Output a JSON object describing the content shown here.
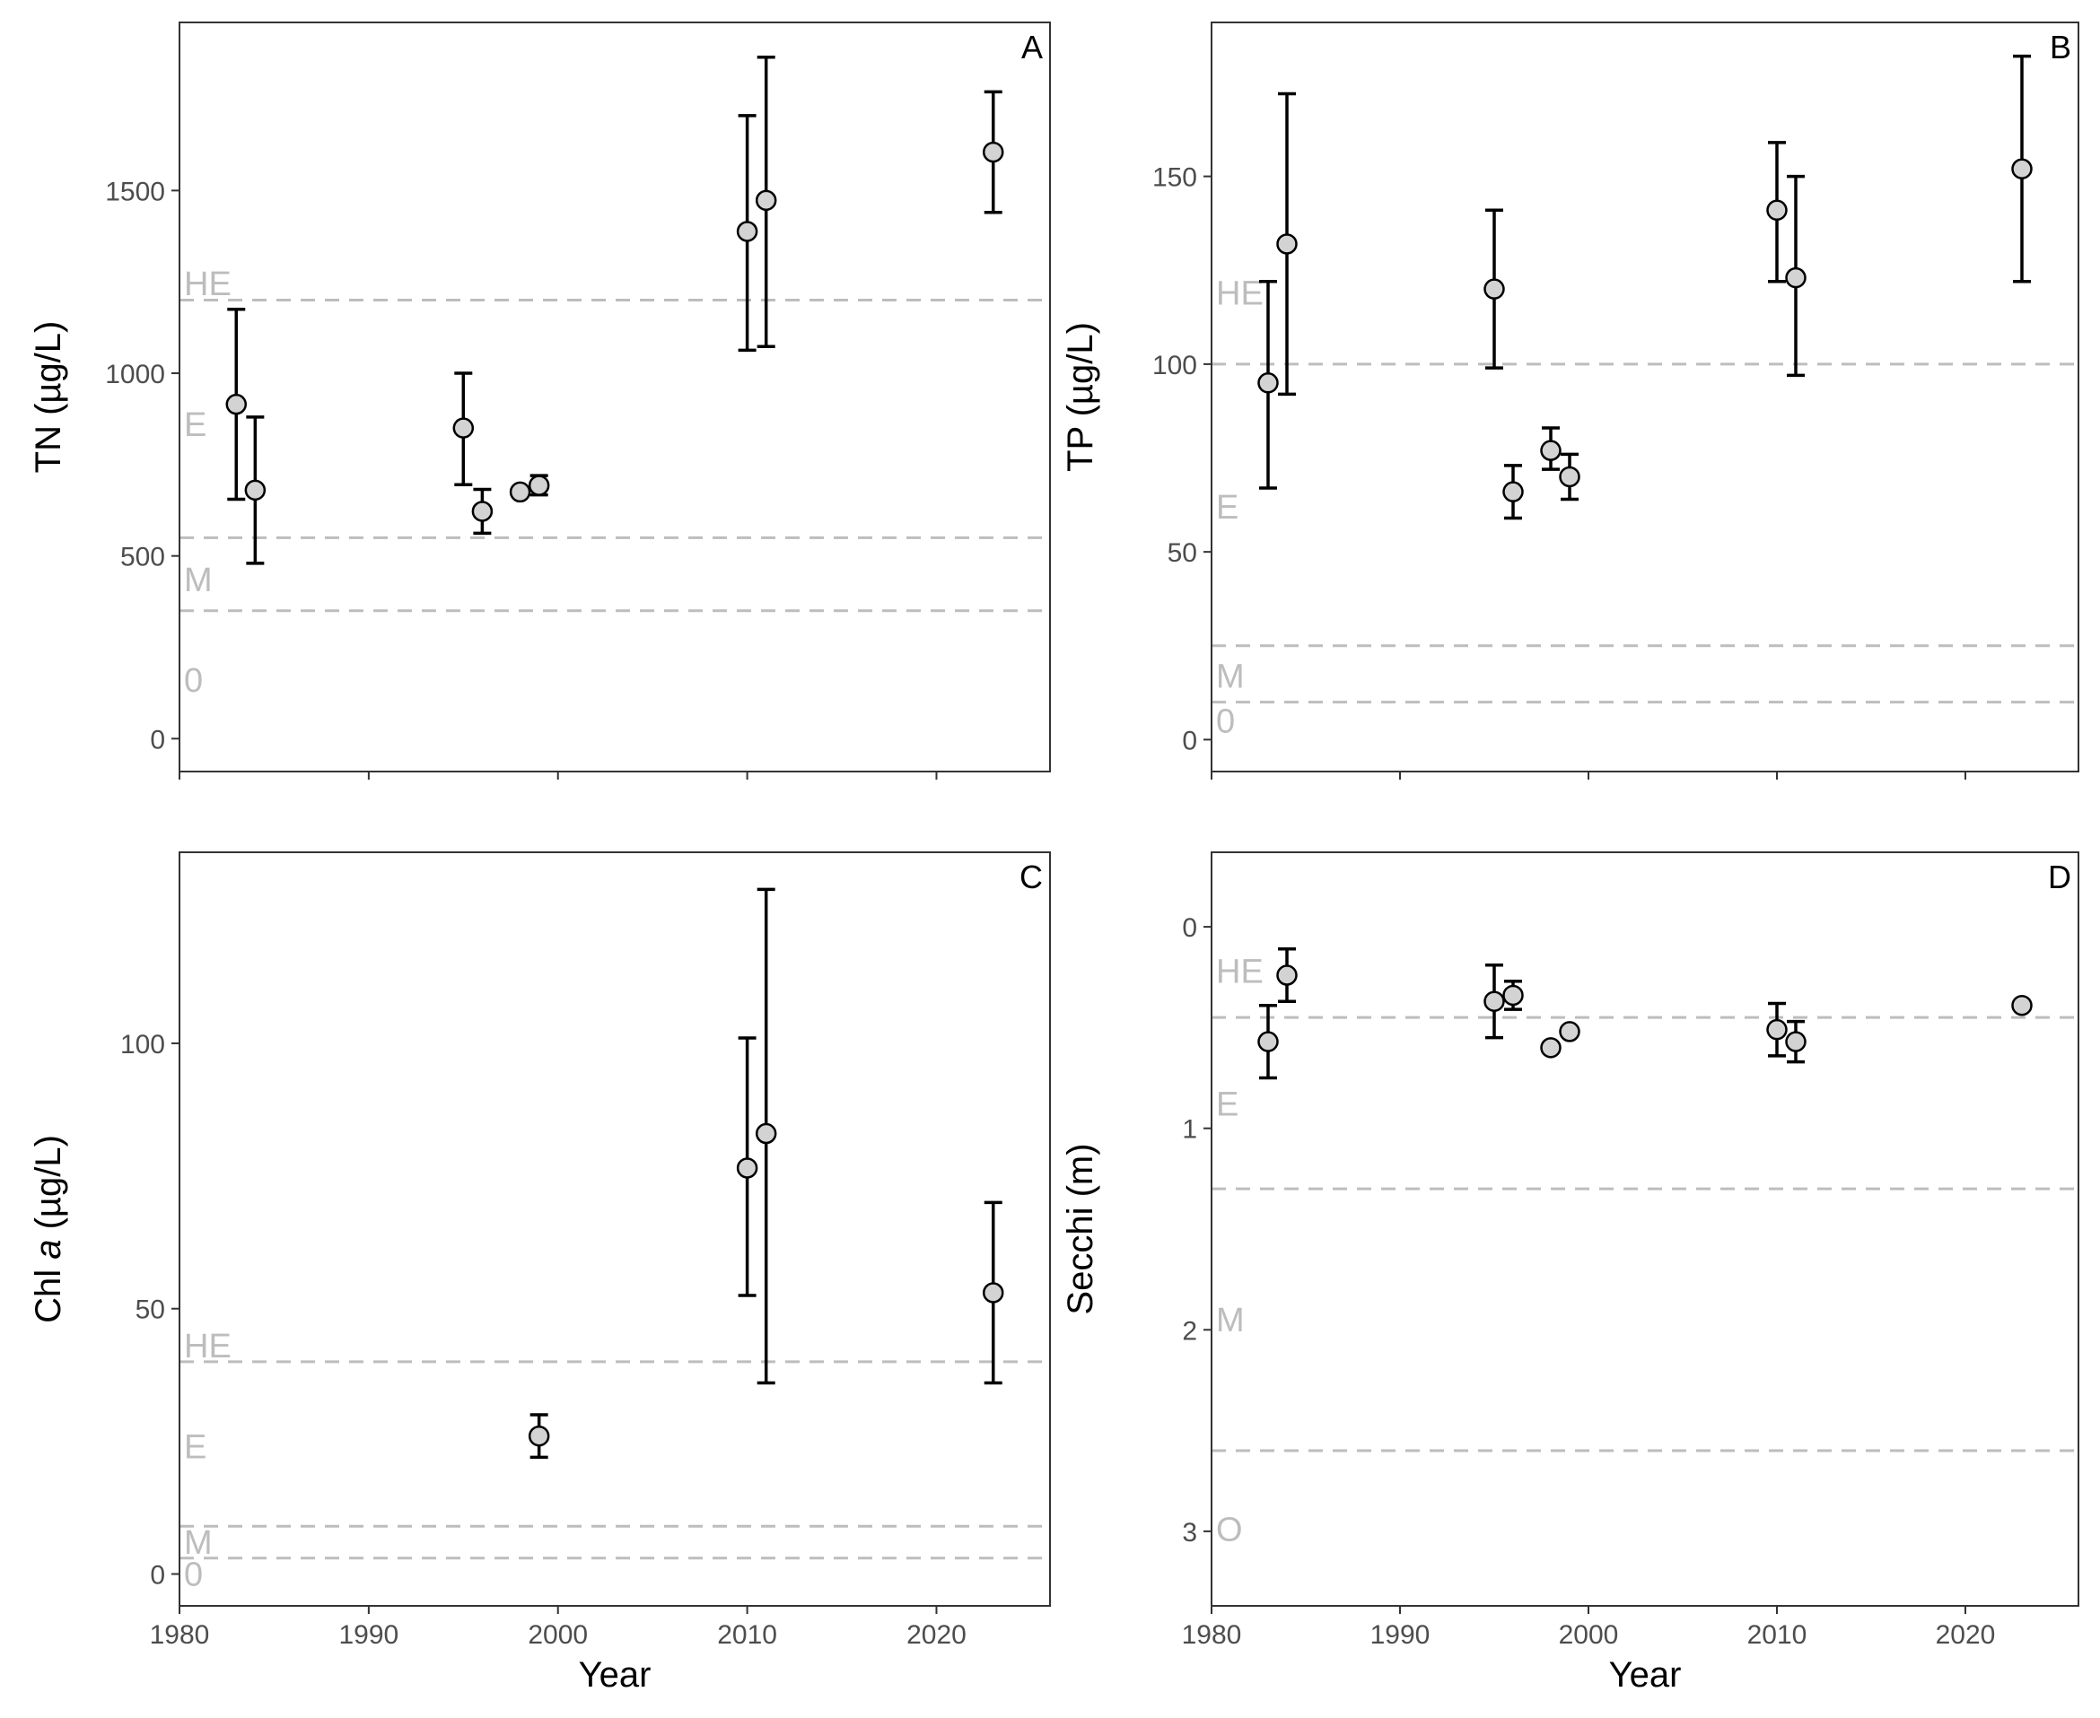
{
  "colors": {
    "point_fill": "#d3d3d3",
    "point_stroke": "#000000",
    "errorbar": "#000000",
    "reference_line": "#bdbdbd",
    "reference_label": "#bdbdbd",
    "tick_label": "#4d4d4d"
  },
  "chart_data": [
    {
      "panel": "A",
      "type": "scatter",
      "xlabel": "Year",
      "ylabel_parts": [
        "TN (µg/L)"
      ],
      "xlim": [
        1980,
        2026
      ],
      "ylim": [
        -90,
        1960
      ],
      "xticks": [
        1980,
        1990,
        2000,
        2010,
        2020
      ],
      "yticks": [
        0,
        500,
        1000,
        1500
      ],
      "show_x_tick_labels": false,
      "reversed_y": false,
      "reference_lines": [
        1200,
        550,
        350
      ],
      "reference_labels": [
        {
          "text": "HE",
          "y": 1245
        },
        {
          "text": "E",
          "y": 860
        },
        {
          "text": "M",
          "y": 435
        },
        {
          "text": "0",
          "y": 160
        }
      ],
      "points": [
        {
          "x": 1983,
          "y": 915,
          "lo": 655,
          "hi": 1175
        },
        {
          "x": 1984,
          "y": 680,
          "lo": 480,
          "hi": 880
        },
        {
          "x": 1995,
          "y": 850,
          "lo": 695,
          "hi": 1000
        },
        {
          "x": 1996,
          "y": 622,
          "lo": 562,
          "hi": 682
        },
        {
          "x": 1998,
          "y": 675
        },
        {
          "x": 1999,
          "y": 693,
          "lo": 667,
          "hi": 720
        },
        {
          "x": 2010,
          "y": 1388,
          "lo": 1063,
          "hi": 1705
        },
        {
          "x": 2011,
          "y": 1473,
          "lo": 1073,
          "hi": 1865
        },
        {
          "x": 2023,
          "y": 1605,
          "lo": 1440,
          "hi": 1770
        }
      ]
    },
    {
      "panel": "B",
      "type": "scatter",
      "xlabel": "Year",
      "ylabel_parts": [
        "TP (µg/L)"
      ],
      "xlim": [
        1980,
        2026
      ],
      "ylim": [
        -8.5,
        191
      ],
      "xticks": [
        1980,
        1990,
        2000,
        2010,
        2020
      ],
      "yticks": [
        0,
        50,
        100,
        150
      ],
      "show_x_tick_labels": false,
      "reversed_y": false,
      "reference_lines": [
        100,
        25,
        10
      ],
      "reference_labels": [
        {
          "text": "HE",
          "y": 119
        },
        {
          "text": "E",
          "y": 62
        },
        {
          "text": "M",
          "y": 17
        },
        {
          "text": "0",
          "y": 5
        }
      ],
      "points": [
        {
          "x": 1983,
          "y": 95,
          "lo": 67,
          "hi": 122
        },
        {
          "x": 1984,
          "y": 132,
          "lo": 92,
          "hi": 172
        },
        {
          "x": 1995,
          "y": 120,
          "lo": 99,
          "hi": 141
        },
        {
          "x": 1996,
          "y": 66,
          "lo": 59,
          "hi": 73
        },
        {
          "x": 1998,
          "y": 77,
          "lo": 72,
          "hi": 83
        },
        {
          "x": 1999,
          "y": 70,
          "lo": 64,
          "hi": 76
        },
        {
          "x": 2010,
          "y": 141,
          "lo": 122,
          "hi": 159
        },
        {
          "x": 2011,
          "y": 123,
          "lo": 97,
          "hi": 150
        },
        {
          "x": 2023,
          "y": 152,
          "lo": 122,
          "hi": 182
        }
      ]
    },
    {
      "panel": "C",
      "type": "scatter",
      "xlabel": "Year",
      "ylabel_parts": [
        "Chl ",
        "a",
        " (µg/L)"
      ],
      "xlim": [
        1980,
        2026
      ],
      "ylim": [
        -6,
        136
      ],
      "xticks": [
        1980,
        1990,
        2000,
        2010,
        2020
      ],
      "yticks": [
        0,
        50,
        100
      ],
      "show_x_tick_labels": true,
      "reversed_y": false,
      "reference_lines": [
        40,
        9,
        3
      ],
      "reference_labels": [
        {
          "text": "HE",
          "y": 43
        },
        {
          "text": "E",
          "y": 24
        },
        {
          "text": "M",
          "y": 6
        },
        {
          "text": "0",
          "y": 0
        }
      ],
      "points": [
        {
          "x": 1999,
          "y": 26,
          "lo": 22,
          "hi": 30
        },
        {
          "x": 2010,
          "y": 76.5,
          "lo": 52.5,
          "hi": 101
        },
        {
          "x": 2011,
          "y": 83,
          "lo": 36,
          "hi": 129
        },
        {
          "x": 2023,
          "y": 53,
          "lo": 36,
          "hi": 70
        }
      ]
    },
    {
      "panel": "D",
      "type": "scatter",
      "xlabel": "Year",
      "ylabel_parts": [
        "Secchi (m)"
      ],
      "xlim": [
        1980,
        2026
      ],
      "ylim": [
        -0.37,
        3.37
      ],
      "xticks": [
        1980,
        1990,
        2000,
        2010,
        2020
      ],
      "yticks": [
        0,
        1,
        2,
        3
      ],
      "show_x_tick_labels": true,
      "reversed_y": true,
      "reference_lines": [
        0.45,
        1.3,
        2.6
      ],
      "reference_labels": [
        {
          "text": "HE",
          "y": 0.22
        },
        {
          "text": "E",
          "y": 0.88
        },
        {
          "text": "M",
          "y": 1.95
        },
        {
          "text": "O",
          "y": 2.99
        }
      ],
      "points": [
        {
          "x": 1983,
          "y": 0.57,
          "lo": 0.39,
          "hi": 0.75
        },
        {
          "x": 1984,
          "y": 0.24,
          "lo": 0.11,
          "hi": 0.37
        },
        {
          "x": 1995,
          "y": 0.37,
          "lo": 0.19,
          "hi": 0.55
        },
        {
          "x": 1996,
          "y": 0.34,
          "lo": 0.27,
          "hi": 0.41
        },
        {
          "x": 1998,
          "y": 0.6
        },
        {
          "x": 1999,
          "y": 0.52
        },
        {
          "x": 2010,
          "y": 0.51,
          "lo": 0.38,
          "hi": 0.64
        },
        {
          "x": 2011,
          "y": 0.57,
          "lo": 0.47,
          "hi": 0.67
        },
        {
          "x": 2023,
          "y": 0.39
        }
      ]
    }
  ]
}
